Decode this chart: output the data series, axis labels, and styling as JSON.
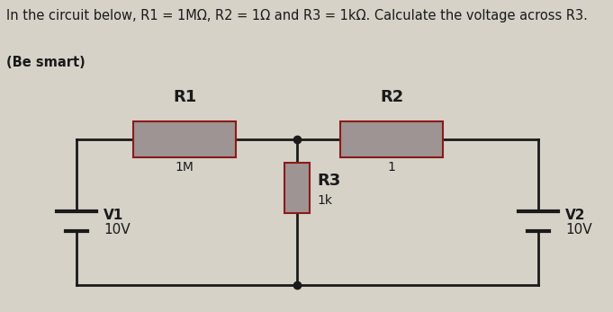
{
  "title_line1": "In the circuit below, R1 = 1MΩ, R2 = 1Ω and R3 = 1kΩ. Calculate the voltage across R3.",
  "title_line2": "(Be smart)",
  "bg_color": "#d6d2c8",
  "wire_color": "#1a1a1a",
  "resistor_fill": "#9e9494",
  "resistor_border": "#8b1a1a",
  "R1_label": "R1",
  "R1_value": "1M",
  "R2_label": "R2",
  "R2_value": "1",
  "R3_label": "R3",
  "R3_value": "1k",
  "V1_label": "V1",
  "V1_value": "10V",
  "V2_label": "V2",
  "V2_value": "10V",
  "title_fontsize": 10.5,
  "label_fontsize": 13,
  "value_fontsize": 10,
  "vsource_fontsize": 11
}
